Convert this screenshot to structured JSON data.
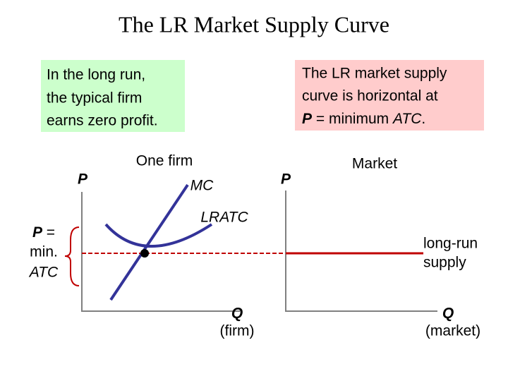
{
  "title": "The LR Market Supply Curve",
  "green_note": {
    "lines": [
      "In the long run,",
      "the typical firm",
      "earns zero profit."
    ]
  },
  "pink_note": {
    "lines": [
      "The LR market supply",
      "curve is horizontal at"
    ],
    "last_line": [
      "P",
      " = minimum ",
      "ATC",
      "."
    ]
  },
  "firm_graph": {
    "heading": "One firm",
    "y_axis": "P",
    "x_axis": "Q",
    "x_axis_note": "(firm)",
    "mc": "MC",
    "lratc": "LRATC",
    "price_label": [
      "P",
      " =",
      "min.",
      "ATC"
    ]
  },
  "market_graph": {
    "heading": "Market",
    "y_axis": "P",
    "x_axis": "Q",
    "x_axis_note": "(market)",
    "supply": [
      "long-run",
      "supply"
    ]
  }
}
